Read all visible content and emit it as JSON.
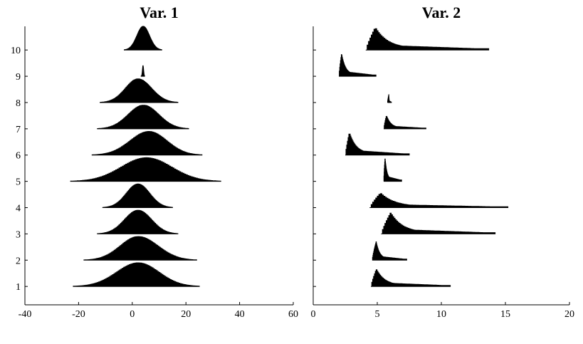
{
  "chart_data": [
    {
      "type": "area",
      "title": "Var. 1",
      "xlim": [
        -40,
        60
      ],
      "ylim": [
        0.3,
        10.9
      ],
      "xticks": [
        -40,
        -20,
        0,
        20,
        40,
        60
      ],
      "yticks": [
        1,
        2,
        3,
        4,
        5,
        6,
        7,
        8,
        9,
        10
      ],
      "series": [
        {
          "row": 1,
          "shape": "symmetric",
          "min": -22,
          "mode": 2,
          "max": 25,
          "height": 0.9
        },
        {
          "row": 2,
          "shape": "symmetric",
          "min": -18,
          "mode": 2,
          "max": 24,
          "height": 0.9
        },
        {
          "row": 3,
          "shape": "symmetric",
          "min": -13,
          "mode": 2,
          "max": 17,
          "height": 0.9
        },
        {
          "row": 4,
          "shape": "symmetric",
          "min": -11,
          "mode": 2,
          "max": 15,
          "height": 0.9
        },
        {
          "row": 5,
          "shape": "symmetric",
          "min": -23,
          "mode": 5,
          "max": 33,
          "height": 0.9
        },
        {
          "row": 6,
          "shape": "symmetric",
          "min": -15,
          "mode": 6,
          "max": 26,
          "height": 0.9
        },
        {
          "row": 7,
          "shape": "symmetric",
          "min": -13,
          "mode": 4,
          "max": 21,
          "height": 0.9
        },
        {
          "row": 8,
          "shape": "symmetric",
          "min": -12,
          "mode": 2,
          "max": 17,
          "height": 0.9
        },
        {
          "row": 9,
          "shape": "spike",
          "min": 3.3,
          "mode": 4,
          "max": 4.6,
          "height": 0.4
        },
        {
          "row": 10,
          "shape": "symmetric",
          "min": -3,
          "mode": 4,
          "max": 11,
          "height": 0.9
        }
      ]
    },
    {
      "type": "area",
      "title": "Var. 2",
      "xlim": [
        0,
        20
      ],
      "ylim": [
        0.3,
        10.9
      ],
      "xticks": [
        0,
        5,
        10,
        15,
        20
      ],
      "yticks": [
        1,
        2,
        3,
        4,
        5,
        6,
        7,
        8,
        9,
        10
      ],
      "series": [
        {
          "row": 1,
          "shape": "skewed",
          "min": 4.5,
          "mode": 4.9,
          "max": 10.7,
          "height": 0.65
        },
        {
          "row": 2,
          "shape": "skewed",
          "min": 4.6,
          "mode": 4.9,
          "max": 7.3,
          "height": 0.7
        },
        {
          "row": 3,
          "shape": "skewed",
          "min": 5.3,
          "mode": 6.0,
          "max": 14.2,
          "height": 0.8
        },
        {
          "row": 4,
          "shape": "skewed",
          "min": 4.4,
          "mode": 5.2,
          "max": 15.2,
          "height": 0.55
        },
        {
          "row": 5,
          "shape": "skewed",
          "min": 5.5,
          "mode": 5.6,
          "max": 6.9,
          "height": 0.9
        },
        {
          "row": 6,
          "shape": "skewed",
          "min": 2.5,
          "mode": 2.8,
          "max": 7.5,
          "height": 0.85
        },
        {
          "row": 7,
          "shape": "skewed",
          "min": 5.5,
          "mode": 5.7,
          "max": 8.8,
          "height": 0.5
        },
        {
          "row": 8,
          "shape": "skewed",
          "min": 5.8,
          "mode": 5.9,
          "max": 6.1,
          "height": 0.3
        },
        {
          "row": 9,
          "shape": "skewed",
          "min": 2.0,
          "mode": 2.2,
          "max": 4.9,
          "height": 0.85
        },
        {
          "row": 10,
          "shape": "skewed",
          "min": 4.1,
          "mode": 4.8,
          "max": 13.7,
          "height": 0.85
        }
      ]
    }
  ]
}
